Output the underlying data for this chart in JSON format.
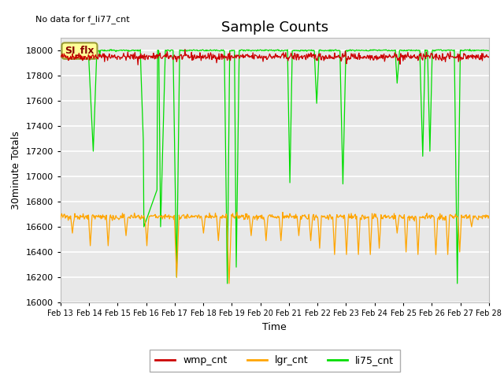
{
  "title": "Sample Counts",
  "xlabel": "Time",
  "ylabel": "30minute Totals",
  "no_data_text": "No data for f_li77_cnt",
  "annotation_text": "SI_flx",
  "ylim": [
    16000,
    18100
  ],
  "yticks": [
    16000,
    16200,
    16400,
    16600,
    16800,
    17000,
    17200,
    17400,
    17600,
    17800,
    18000
  ],
  "xtick_labels": [
    "Feb 13",
    "Feb 14",
    "Feb 15",
    "Feb 16",
    "Feb 17",
    "Feb 18",
    "Feb 19",
    "Feb 20",
    "Feb 21",
    "Feb 22",
    "Feb 23",
    "Feb 24",
    "Feb 25",
    "Feb 26",
    "Feb 27",
    "Feb 28"
  ],
  "wmp_color": "#cc0000",
  "lgr_color": "#ffa500",
  "li75_color": "#00dd00",
  "legend_entries": [
    "wmp_cnt",
    "lgr_cnt",
    "li75_cnt"
  ],
  "plot_bg_color": "#e8e8e8",
  "grid_color": "white",
  "title_fontsize": 13,
  "label_fontsize": 9,
  "tick_fontsize": 8,
  "annotation_box_color": "#ffff99",
  "annotation_border_color": "#999933",
  "wmp_base": 17950,
  "wmp_noise": 15,
  "lgr_base": 16680,
  "lgr_noise": 12,
  "li75_base": 17980,
  "li75_noise": 8
}
